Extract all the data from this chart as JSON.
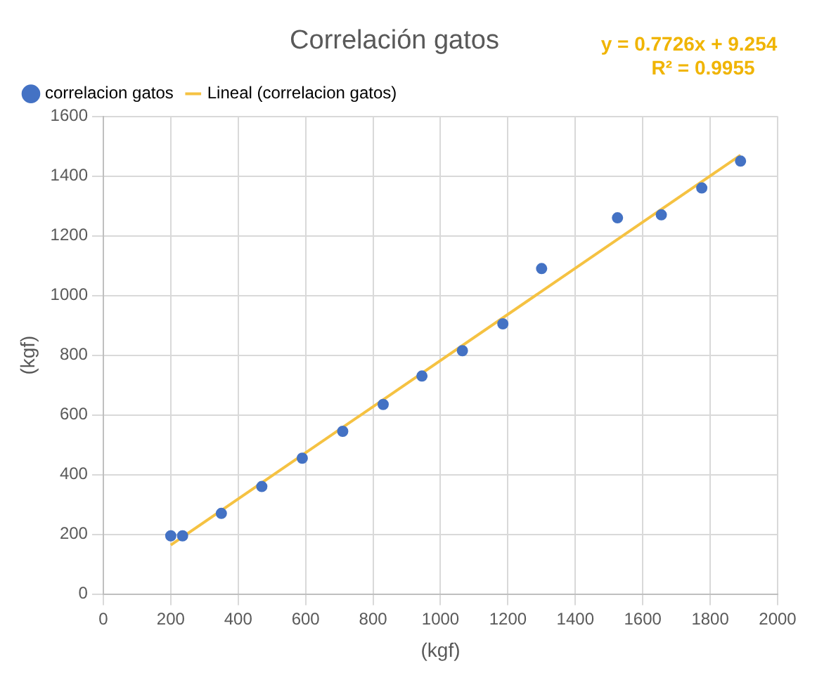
{
  "chart_data": {
    "type": "scatter",
    "title": "Correlación gatos",
    "xlabel": "(kgf)",
    "ylabel": "(kgf)",
    "annotations": [
      "y = 0.7726x + 9.254",
      "R² = 0.9955"
    ],
    "series": [
      {
        "name": "correlacion gatos",
        "type": "scatter",
        "marker": "circle",
        "color": "#4472c4",
        "x": [
          200,
          235,
          350,
          470,
          590,
          710,
          830,
          945,
          1065,
          1185,
          1300,
          1525,
          1655,
          1775,
          1890
        ],
        "values": [
          195,
          195,
          270,
          360,
          455,
          545,
          635,
          730,
          815,
          905,
          1090,
          1260,
          1270,
          1360,
          1450
        ]
      },
      {
        "name": "Lineal (correlacion gatos)",
        "type": "line",
        "color": "#f5c242",
        "x": [
          200,
          1890
        ],
        "values": [
          164,
          1470
        ]
      }
    ],
    "xlim": [
      0,
      2000
    ],
    "xticks": [
      0,
      200,
      400,
      600,
      800,
      1000,
      1200,
      1400,
      1600,
      1800,
      2000
    ],
    "ylim": [
      0,
      1600
    ],
    "yticks": [
      0,
      200,
      400,
      600,
      800,
      1000,
      1200,
      1400,
      1600
    ],
    "grid": true,
    "legend": "top left"
  }
}
